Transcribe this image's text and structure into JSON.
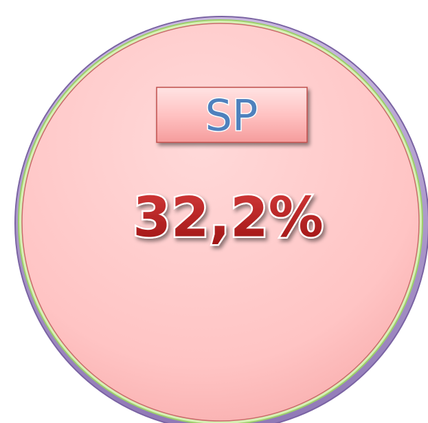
{
  "badge": {
    "label": "SP",
    "value": "32,2%"
  }
}
